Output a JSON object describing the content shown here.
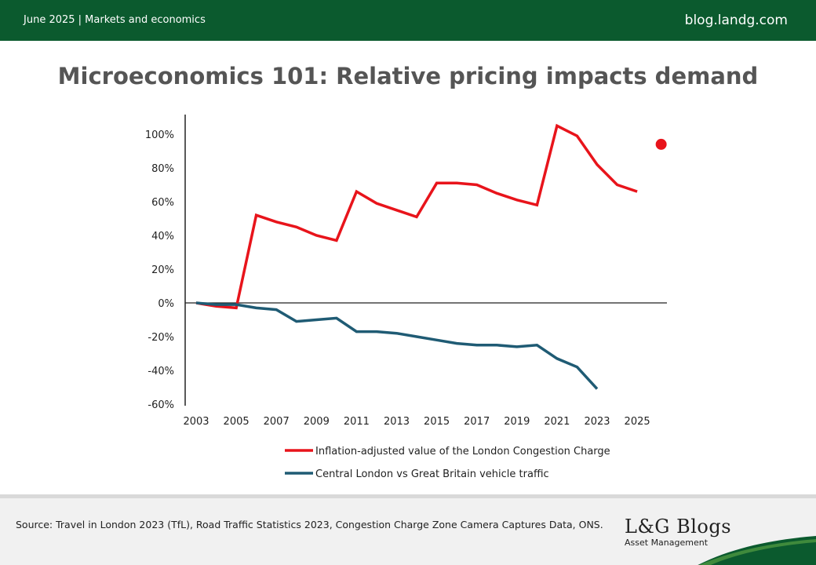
{
  "header": {
    "left_text": "June 2025 | Markets and economics",
    "right_text": "blog.landg.com"
  },
  "colors": {
    "brand_green": "#0b5a2e",
    "series_red": "#e8141b",
    "series_blue": "#1f5b74"
  },
  "chart_data": {
    "type": "line",
    "title": "Microeconomics 101: Relative pricing impacts demand",
    "xlabel": "",
    "ylabel": "",
    "xlim": [
      2003,
      2026
    ],
    "ylim": [
      -60,
      110
    ],
    "x_ticks": [
      "2003",
      "2005",
      "2007",
      "2009",
      "2011",
      "2013",
      "2015",
      "2017",
      "2019",
      "2021",
      "2023",
      "2025"
    ],
    "y_ticks": [
      "-60%",
      "-40%",
      "-20%",
      "0%",
      "20%",
      "40%",
      "60%",
      "80%",
      "100%"
    ],
    "legend_position": "bottom",
    "grid": false,
    "series": [
      {
        "name": "Inflation-adjusted value of the London Congestion Charge",
        "color": "#e8141b",
        "x": [
          2003,
          2004,
          2005,
          2006,
          2007,
          2008,
          2009,
          2010,
          2011,
          2012,
          2013,
          2014,
          2015,
          2016,
          2017,
          2018,
          2019,
          2020,
          2021,
          2022,
          2023,
          2024,
          2025
        ],
        "values": [
          0,
          -2,
          -3,
          52,
          48,
          45,
          40,
          37,
          66,
          59,
          55,
          51,
          71,
          71,
          70,
          65,
          61,
          58,
          105,
          99,
          82,
          70,
          66
        ]
      },
      {
        "name": "Central London vs Great Britain vehicle traffic",
        "color": "#1f5b74",
        "x": [
          2003,
          2004,
          2005,
          2006,
          2007,
          2008,
          2009,
          2010,
          2011,
          2012,
          2013,
          2014,
          2015,
          2016,
          2017,
          2018,
          2019,
          2020,
          2021,
          2022,
          2023
        ],
        "values": [
          0,
          -1,
          -1,
          -3,
          -4,
          -11,
          -10,
          -9,
          -17,
          -17,
          -18,
          -20,
          -22,
          -24,
          -25,
          -25,
          -26,
          -25,
          -33,
          -38,
          -51
        ]
      }
    ],
    "annotations": [
      {
        "type": "point",
        "x": 2026,
        "y": 94,
        "color": "#e8141b"
      }
    ]
  },
  "footer": {
    "source": "Source: Travel in London 2023 (TfL), Road Traffic Statistics 2023, Congestion Charge Zone Camera Captures Data, ONS.",
    "logo_brand": "L&G Blogs",
    "logo_sub": "Asset Management"
  }
}
